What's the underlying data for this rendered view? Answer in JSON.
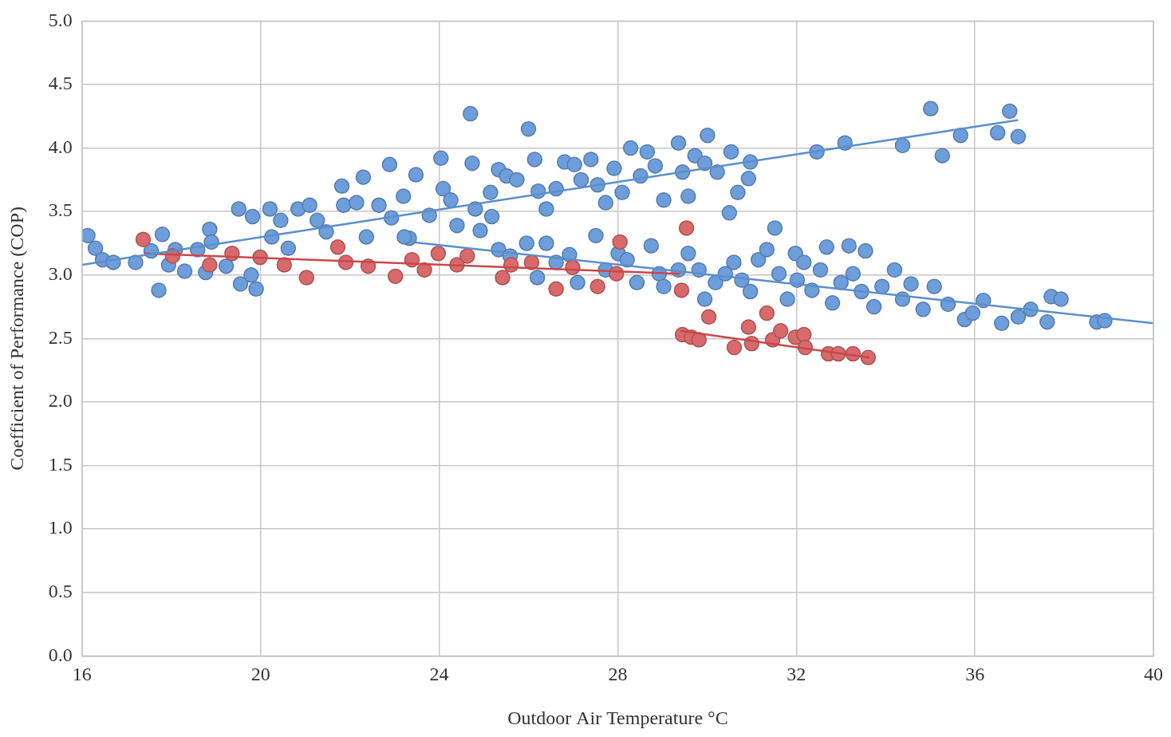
{
  "chart_data": {
    "type": "scatter",
    "x_label": "Outdoor Air Temperature °C",
    "y_label": "Coefficient of Performance (COP)",
    "xlim": [
      16,
      40
    ],
    "xticks": [
      16,
      20,
      24,
      28,
      32,
      36,
      40
    ],
    "ylim": [
      0,
      5
    ],
    "yticks": [
      {
        "value": 0,
        "label": "0.0"
      },
      0.5,
      {
        "value": 1,
        "label": "1.0"
      },
      1.5,
      {
        "value": 2,
        "label": "2.0"
      },
      2.5,
      {
        "value": 3,
        "label": "3.0"
      },
      3.5,
      {
        "value": 4,
        "label": "4.0"
      },
      4.5,
      {
        "value": 5,
        "label": "5.0"
      }
    ],
    "grid": true,
    "series": [
      {
        "type": "line",
        "marker": "none",
        "line_style": "solid",
        "color": "#5b8fcd",
        "x": [
          16,
          36.97
        ],
        "values": [
          3.08,
          4.22
        ]
      },
      {
        "type": "line",
        "marker": "none",
        "line_style": "solid",
        "color": "#5b8fcd",
        "x": [
          23.39,
          40
        ],
        "values": [
          3.26,
          2.62
        ]
      },
      {
        "type": "line",
        "marker": "none",
        "line_style": "solid",
        "color": "#c9484a",
        "x": [
          17.39,
          29.4
        ],
        "values": [
          3.17,
          3.01
        ]
      },
      {
        "type": "line",
        "marker": "none",
        "line_style": "solid",
        "color": "#c9484a",
        "x": [
          29.4,
          33.64
        ],
        "values": [
          2.56,
          2.35
        ]
      },
      {
        "type": "scatter",
        "marker": "circle",
        "color": "#d9696b",
        "x": [
          17.37,
          18.03,
          18.86,
          19.36,
          19.99,
          20.53,
          21.03,
          21.73,
          21.91,
          22.41,
          23.02,
          23.39,
          23.67,
          23.98,
          24.4,
          24.63,
          25.42,
          25.61,
          26.07,
          26.62,
          26.99,
          27.55,
          27.97,
          28.05,
          29.54,
          29.43,
          29.45,
          29.65,
          29.82,
          30.04,
          30.61,
          30.93,
          31.0,
          31.34,
          31.47,
          31.65,
          31.98,
          32.17,
          32.2,
          32.72,
          32.94,
          33.27,
          33.61
        ],
        "values": [
          3.28,
          3.15,
          3.08,
          3.17,
          3.14,
          3.08,
          2.98,
          3.22,
          3.1,
          3.07,
          2.99,
          3.12,
          3.04,
          3.17,
          3.08,
          3.15,
          2.98,
          3.08,
          3.1,
          2.89,
          3.06,
          2.91,
          3.01,
          3.26,
          3.37,
          2.88,
          2.53,
          2.51,
          2.49,
          2.67,
          2.43,
          2.59,
          2.46,
          2.7,
          2.49,
          2.56,
          2.51,
          2.53,
          2.43,
          2.38,
          2.38,
          2.38,
          2.35
        ]
      },
      {
        "type": "scatter",
        "marker": "circle",
        "color": "#6d9edb",
        "x": [
          16.13,
          16.3,
          16.46,
          16.7,
          17.2,
          17.55,
          17.72,
          17.8,
          17.94,
          18.09,
          18.3,
          18.59,
          18.86,
          18.9,
          18.77,
          19.23,
          19.51,
          19.55,
          19.79,
          19.9,
          19.82,
          20.21,
          20.25,
          20.45,
          20.62,
          20.84,
          21.1,
          21.27,
          21.47,
          21.82,
          21.86,
          22.15,
          22.3,
          22.37,
          22.65,
          22.89,
          22.93,
          23.2,
          23.33,
          23.48,
          23.78,
          24.04,
          24.09,
          24.26,
          24.4,
          24.7,
          24.74,
          24.81,
          24.92,
          25.15,
          25.33,
          25.51,
          25.74,
          26.0,
          26.14,
          26.22,
          26.4,
          26.62,
          26.81,
          27.03,
          27.18,
          27.4,
          27.55,
          27.73,
          27.92,
          28.1,
          28.29,
          28.51,
          28.66,
          28.84,
          29.03,
          29.36,
          29.45,
          29.58,
          29.73,
          29.95,
          30.01,
          30.23,
          30.54,
          30.5,
          30.69,
          30.93,
          30.97,
          32.46,
          33.09,
          34.38,
          35.01,
          35.27,
          35.68,
          36.51,
          36.78,
          36.97,
          23.22,
          25.18,
          25.33,
          25.59,
          25.96,
          26.2,
          26.4,
          26.62,
          26.92,
          27.1,
          27.51,
          27.73,
          28.01,
          28.21,
          28.43,
          28.75,
          28.93,
          29.03,
          29.36,
          29.58,
          29.82,
          29.95,
          30.19,
          30.41,
          30.6,
          30.78,
          30.97,
          31.15,
          31.34,
          31.52,
          31.61,
          31.8,
          31.98,
          32.02,
          32.17,
          32.35,
          32.54,
          32.68,
          32.81,
          33.0,
          33.18,
          33.27,
          33.46,
          33.55,
          33.74,
          33.92,
          34.2,
          34.38,
          34.57,
          34.84,
          35.09,
          35.4,
          35.77,
          35.95,
          36.19,
          36.6,
          36.97,
          37.25,
          37.62,
          37.71,
          37.93,
          38.73,
          38.91
        ],
        "values": [
          3.31,
          3.21,
          3.12,
          3.1,
          3.1,
          3.19,
          2.88,
          3.32,
          3.08,
          3.2,
          3.03,
          3.2,
          3.36,
          3.26,
          3.02,
          3.07,
          3.52,
          2.93,
          3.0,
          2.89,
          3.46,
          3.52,
          3.3,
          3.43,
          3.21,
          3.52,
          3.55,
          3.43,
          3.34,
          3.7,
          3.55,
          3.57,
          3.77,
          3.3,
          3.55,
          3.87,
          3.45,
          3.62,
          3.29,
          3.79,
          3.47,
          3.92,
          3.68,
          3.59,
          3.39,
          4.27,
          3.88,
          3.52,
          3.35,
          3.65,
          3.83,
          3.78,
          3.75,
          4.15,
          3.91,
          3.66,
          3.52,
          3.68,
          3.89,
          3.87,
          3.75,
          3.91,
          3.71,
          3.57,
          3.84,
          3.65,
          4.0,
          3.78,
          3.97,
          3.86,
          3.59,
          4.04,
          3.81,
          3.62,
          3.94,
          3.88,
          4.1,
          3.81,
          3.97,
          3.49,
          3.65,
          3.76,
          3.89,
          3.97,
          4.04,
          4.02,
          4.31,
          3.94,
          4.1,
          4.12,
          4.29,
          4.09,
          3.3,
          3.46,
          3.2,
          3.15,
          3.25,
          2.98,
          3.25,
          3.1,
          3.16,
          2.94,
          3.31,
          3.04,
          3.17,
          3.12,
          2.94,
          3.23,
          3.01,
          2.91,
          3.04,
          3.17,
          3.04,
          2.81,
          2.94,
          3.01,
          3.1,
          2.96,
          2.87,
          3.12,
          3.2,
          3.37,
          3.01,
          2.81,
          3.17,
          2.96,
          3.1,
          2.88,
          3.04,
          3.22,
          2.78,
          2.94,
          3.23,
          3.01,
          2.87,
          3.19,
          2.75,
          2.91,
          3.04,
          2.81,
          2.93,
          2.73,
          2.91,
          2.77,
          2.65,
          2.7,
          2.8,
          2.62,
          2.67,
          2.73,
          2.63,
          2.83,
          2.81,
          2.63,
          2.64
        ]
      }
    ]
  }
}
